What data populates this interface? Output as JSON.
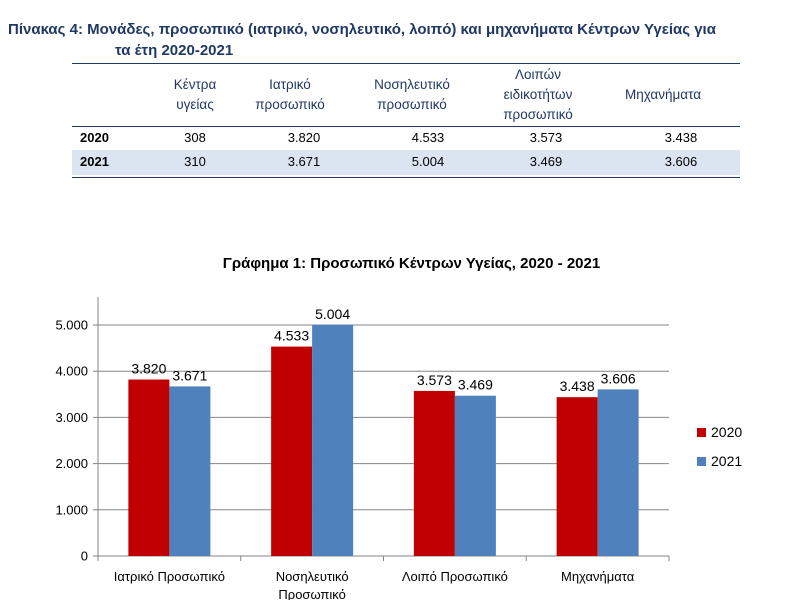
{
  "table": {
    "title_line1": "Πίνακας 4: Μονάδες, προσωπικό (ιατρικό, νοσηλευτικό, λοιπό) και μηχανήματα Κέντρων Υγείας για",
    "title_line2": "τα έτη 2020-2021",
    "headers": [
      "Κέντρα\nυγείας",
      "Ιατρικό\nπροσωπικό",
      "Νοσηλευτικό\nπροσωπικό",
      "Λοιπών\nειδικοτήτων\nπροσωπικό",
      "Μηχανήματα"
    ],
    "rows": [
      {
        "year": "2020",
        "values": [
          "308",
          "3.820",
          "4.533",
          "3.573",
          "3.438"
        ]
      },
      {
        "year": "2021",
        "values": [
          "310",
          "3.671",
          "5.004",
          "3.469",
          "3.606"
        ]
      }
    ]
  },
  "chart_data": {
    "type": "bar",
    "title": "Γράφημα 1: Προσωπικό Κέντρων Υγείας, 2020 - 2021",
    "categories": [
      "Ιατρικό Προσωπικό",
      "Νοσηλευτικό\nΠροσωπικό",
      "Λοιπό Προσωπικό",
      "Μηχανήματα"
    ],
    "series": [
      {
        "name": "2020",
        "values": [
          3820,
          4533,
          3573,
          3438
        ],
        "labels": [
          "3.820",
          "4.533",
          "3.573",
          "3.438"
        ],
        "color": "#c00000"
      },
      {
        "name": "2021",
        "values": [
          3671,
          5004,
          3469,
          3606
        ],
        "labels": [
          "3.671",
          "5.004",
          "3.469",
          "3.606"
        ],
        "color": "#4f81bd"
      }
    ],
    "ylim": [
      0,
      5000
    ],
    "yticks": [
      0,
      1000,
      2000,
      3000,
      4000,
      5000
    ],
    "ytick_labels": [
      "0",
      "1.000",
      "2.000",
      "3.000",
      "4.000",
      "5.000"
    ],
    "grid": true,
    "legend_position": "right",
    "xlabel": "",
    "ylabel": ""
  }
}
